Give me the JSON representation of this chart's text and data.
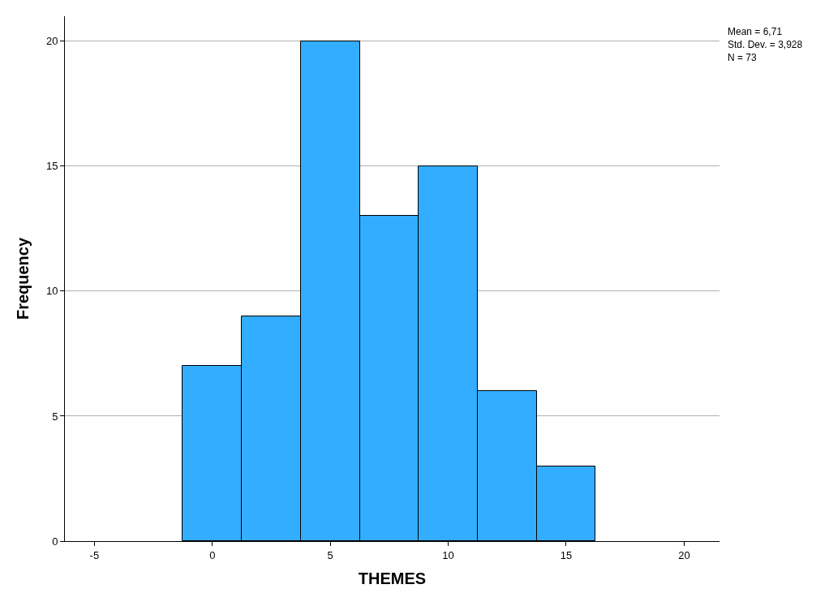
{
  "chart_data": {
    "type": "histogram",
    "xlabel": "THEMES",
    "ylabel": "Frequency",
    "bins": [
      -1.25,
      1.25,
      3.75,
      6.25,
      8.75,
      11.25,
      13.75,
      16.25
    ],
    "values": [
      7,
      9,
      20,
      13,
      15,
      6,
      3
    ],
    "color": "#33adff",
    "xlim": [
      -6.25,
      21.5
    ],
    "xticks": [
      -5,
      0,
      5,
      10,
      15,
      20
    ],
    "ylim": [
      0,
      21
    ],
    "yticks": [
      0,
      5,
      10,
      15,
      20
    ],
    "grid": "y",
    "annotations": [
      "Mean = 6,71",
      "Std. Dev. = 3,928",
      "N = 73"
    ]
  }
}
